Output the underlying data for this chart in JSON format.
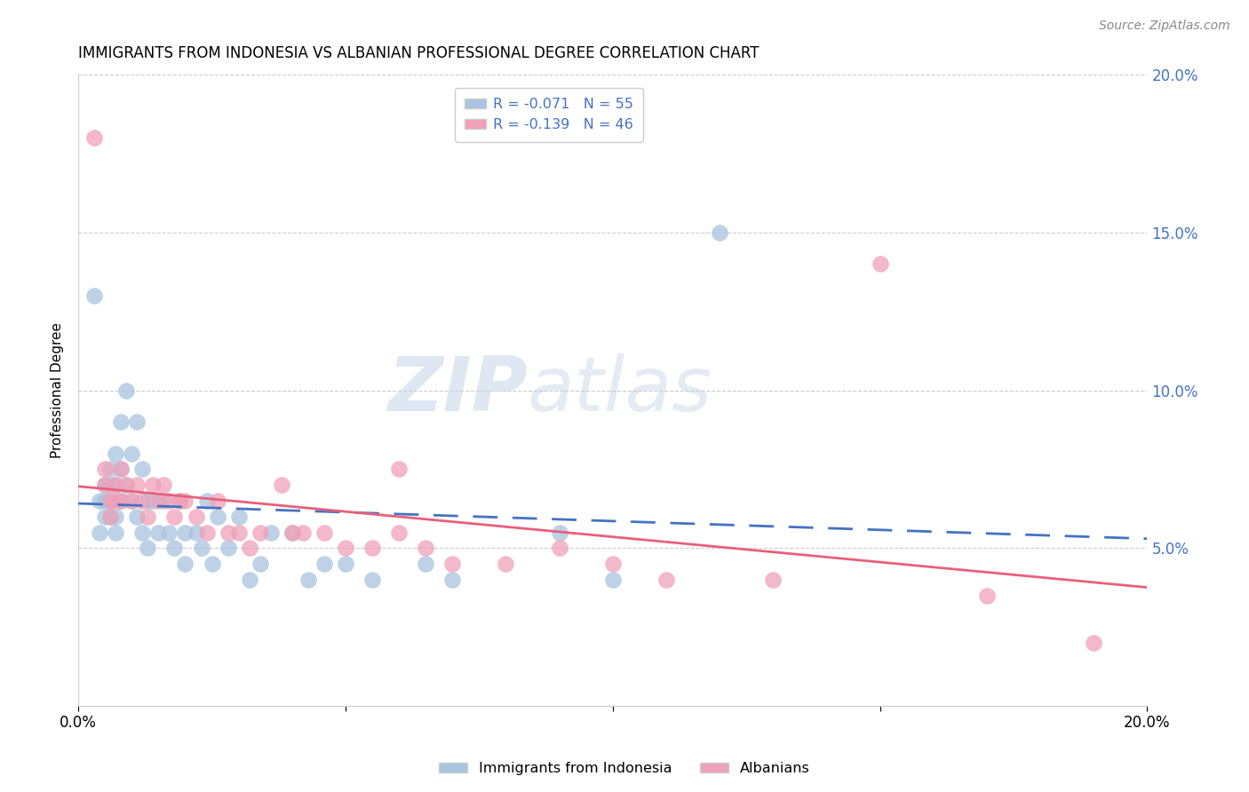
{
  "title": "IMMIGRANTS FROM INDONESIA VS ALBANIAN PROFESSIONAL DEGREE CORRELATION CHART",
  "source": "Source: ZipAtlas.com",
  "ylabel": "Professional Degree",
  "color_blue": "#a8c4e0",
  "color_pink": "#f0a0b8",
  "color_blue_dark": "#4472c4",
  "color_pink_dark": "#e8607a",
  "color_right_axis": "#4472c4",
  "watermark_zip": "ZIP",
  "watermark_atlas": "atlas",
  "legend_r1": "R = ",
  "legend_r1_val": "-0.071",
  "legend_n1": "N = ",
  "legend_n1_val": "55",
  "legend_r2": "R = ",
  "legend_r2_val": "-0.139",
  "legend_n2": "N = ",
  "legend_n2_val": "46",
  "xlim": [
    0.0,
    0.2
  ],
  "ylim": [
    0.0,
    0.2
  ],
  "indonesia_x": [
    0.003,
    0.004,
    0.004,
    0.005,
    0.005,
    0.005,
    0.006,
    0.006,
    0.006,
    0.006,
    0.007,
    0.007,
    0.007,
    0.007,
    0.008,
    0.008,
    0.008,
    0.009,
    0.009,
    0.01,
    0.01,
    0.011,
    0.011,
    0.012,
    0.012,
    0.013,
    0.013,
    0.014,
    0.015,
    0.016,
    0.017,
    0.018,
    0.019,
    0.02,
    0.02,
    0.022,
    0.023,
    0.024,
    0.025,
    0.026,
    0.028,
    0.03,
    0.032,
    0.034,
    0.036,
    0.04,
    0.043,
    0.046,
    0.05,
    0.055,
    0.065,
    0.07,
    0.09,
    0.1,
    0.12
  ],
  "indonesia_y": [
    0.13,
    0.065,
    0.055,
    0.07,
    0.065,
    0.06,
    0.075,
    0.07,
    0.065,
    0.06,
    0.08,
    0.07,
    0.06,
    0.055,
    0.09,
    0.075,
    0.065,
    0.1,
    0.07,
    0.08,
    0.065,
    0.09,
    0.06,
    0.075,
    0.055,
    0.065,
    0.05,
    0.065,
    0.055,
    0.065,
    0.055,
    0.05,
    0.065,
    0.055,
    0.045,
    0.055,
    0.05,
    0.065,
    0.045,
    0.06,
    0.05,
    0.06,
    0.04,
    0.045,
    0.055,
    0.055,
    0.04,
    0.045,
    0.045,
    0.04,
    0.045,
    0.04,
    0.055,
    0.04,
    0.15
  ],
  "albanian_x": [
    0.003,
    0.005,
    0.005,
    0.006,
    0.006,
    0.007,
    0.007,
    0.008,
    0.008,
    0.009,
    0.01,
    0.011,
    0.012,
    0.013,
    0.014,
    0.015,
    0.016,
    0.017,
    0.018,
    0.019,
    0.02,
    0.022,
    0.024,
    0.026,
    0.028,
    0.03,
    0.032,
    0.034,
    0.038,
    0.04,
    0.042,
    0.046,
    0.05,
    0.055,
    0.06,
    0.065,
    0.07,
    0.08,
    0.09,
    0.1,
    0.11,
    0.13,
    0.15,
    0.17,
    0.19,
    0.06
  ],
  "albanian_y": [
    0.18,
    0.075,
    0.07,
    0.065,
    0.06,
    0.07,
    0.065,
    0.075,
    0.065,
    0.07,
    0.065,
    0.07,
    0.065,
    0.06,
    0.07,
    0.065,
    0.07,
    0.065,
    0.06,
    0.065,
    0.065,
    0.06,
    0.055,
    0.065,
    0.055,
    0.055,
    0.05,
    0.055,
    0.07,
    0.055,
    0.055,
    0.055,
    0.05,
    0.05,
    0.055,
    0.05,
    0.045,
    0.045,
    0.05,
    0.045,
    0.04,
    0.04,
    0.14,
    0.035,
    0.02,
    0.075
  ]
}
